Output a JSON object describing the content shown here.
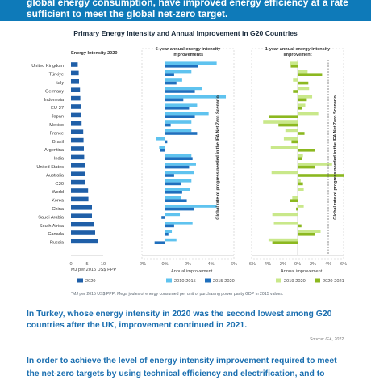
{
  "intro_text": "global energy consumption, have improved energy efficiency at a rate sufficient to meet the global net-zero target.",
  "chart_data": {
    "type": "bar",
    "title": "Primary Energy Intensity and Annual Improvement in G20 Countries",
    "categories": [
      "United Kingdom",
      "Türkiye",
      "Italy",
      "Germany",
      "Indonesia",
      "EU-27",
      "Japan",
      "Mexico",
      "France",
      "Brazil",
      "Argentina",
      "India",
      "United States",
      "Australia",
      "G20",
      "World",
      "Korea",
      "China",
      "Saudi Arabia",
      "South Africa",
      "Canada",
      "Russia"
    ],
    "panels": [
      {
        "id": "intensity",
        "title": "Energy Intensity 2020",
        "xlim": [
          0,
          10
        ],
        "ticks": [
          "0",
          "5",
          "10"
        ],
        "xlabel": "MJ per 2015 US$ PPP",
        "legend": [
          "2020"
        ],
        "series": [
          {
            "name": "2020",
            "color": "#1f5fa8",
            "values": [
              2.1,
              2.4,
              2.5,
              2.8,
              2.9,
              3.0,
              3.0,
              3.3,
              3.8,
              3.9,
              4.0,
              4.1,
              4.3,
              4.4,
              4.5,
              5.3,
              5.4,
              6.5,
              6.5,
              7.1,
              7.5,
              8.5
            ]
          }
        ]
      },
      {
        "id": "five-year",
        "title": "5-year annual energy intensity improvements",
        "xlim": [
          -2,
          6
        ],
        "ticks": [
          "-2%",
          "0%",
          "2%",
          "4%",
          "6%"
        ],
        "xlabel": "Annual improvement",
        "legend": [
          "2010-2015",
          "2015-2020"
        ],
        "reference": {
          "value": 4,
          "label": "Global rate of progress needed in the IEA Net Zero Scenario"
        },
        "series": [
          {
            "name": "2010-2015",
            "color": "#5fc3ef",
            "values": [
              4.5,
              2.3,
              1.5,
              3.2,
              5.3,
              2.8,
              3.8,
              2.3,
              2.3,
              -0.8,
              -0.5,
              2.3,
              2.7,
              2.5,
              2.3,
              2.2,
              1.4,
              4.5,
              1.3,
              2.4,
              0.6,
              1.0
            ]
          },
          {
            "name": "2015-2020",
            "color": "#1f6fbd",
            "values": [
              2.9,
              0.8,
              1.0,
              2.6,
              1.6,
              2.1,
              2.6,
              0.5,
              2.8,
              0.2,
              -0.4,
              2.4,
              2.1,
              0.8,
              1.4,
              1.5,
              1.9,
              2.5,
              -0.3,
              0.8,
              0.3,
              -0.9
            ]
          }
        ]
      },
      {
        "id": "one-year",
        "title": "1-year annual energy intensity improvement",
        "xlim": [
          -6,
          6
        ],
        "ticks": [
          "-6%",
          "-4%",
          "-2%",
          "0%",
          "2%",
          "4%",
          "6%"
        ],
        "xlabel": "Annual improvement",
        "legend": [
          "2019-2020",
          "2020-2021"
        ],
        "reference": {
          "value": 4,
          "label": "Global rate of progress needed in the IEA Net Zero Scenario"
        },
        "series": [
          {
            "name": "2019-2020",
            "color": "#c9e88a",
            "values": [
              -1.0,
              1.3,
              -0.6,
              1.5,
              1.9,
              1.0,
              2.7,
              -4.5,
              -1.6,
              -1.8,
              -3.5,
              0.7,
              4.5,
              -3.4,
              0.4,
              0.8,
              -0.7,
              0.8,
              -3.3,
              -3.1,
              3.0,
              -3.8
            ]
          },
          {
            "name": "2020-2021",
            "color": "#8cb820",
            "values": [
              -0.9,
              3.2,
              1.4,
              -0.6,
              1.2,
              0.6,
              -3.7,
              -2.5,
              0.9,
              -0.8,
              2.3,
              0.6,
              2.3,
              6.1,
              0.7,
              0.0,
              -1.0,
              -0.2,
              0.0,
              0.5,
              2.3,
              -3.3
            ]
          }
        ]
      }
    ],
    "footnote": "*MJ per 2015 US$ PPP: Mega joules of energy consumed per unit of purchasing power parity GDP in 2015 values."
  },
  "callout_text": "In Turkey, whose energy intensity in 2020 was the second lowest among G20 countries after the UK, improvement continued in 2021.",
  "source_text": "Source: IEA, 2022",
  "closing_text": "In order to achieve the level of energy intensity improvement required to meet",
  "closing_text_2": "the net-zero targets by using technical efficiency and electrification, and to"
}
